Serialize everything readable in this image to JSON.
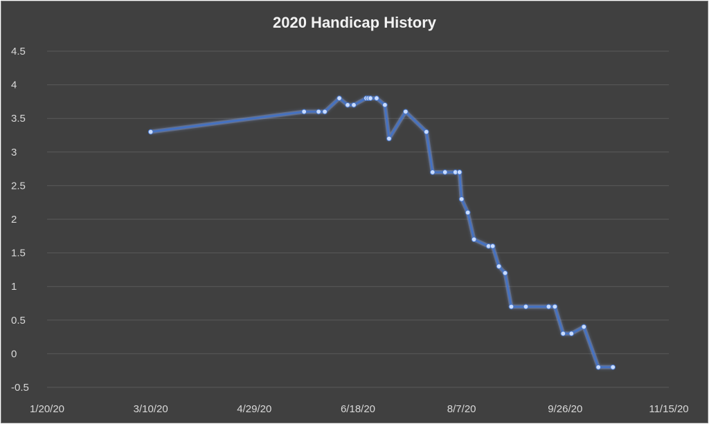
{
  "chart_data": {
    "type": "line",
    "title": "2020 Handicap History",
    "xlabel": "",
    "ylabel": "",
    "grid": true,
    "legend": "none",
    "x_axis_type": "date",
    "xlim": [
      "2020-01-20",
      "2020-11-15"
    ],
    "x_ticks": [
      "2020-01-20",
      "2020-03-10",
      "2020-04-29",
      "2020-06-18",
      "2020-08-07",
      "2020-09-26",
      "2020-11-15"
    ],
    "x_tick_labels": [
      "1/20/20",
      "3/10/20",
      "4/29/20",
      "6/18/20",
      "8/7/20",
      "9/26/20",
      "11/15/20"
    ],
    "ylim": [
      -0.5,
      4.5
    ],
    "y_ticks": [
      -0.5,
      0,
      0.5,
      1,
      1.5,
      2,
      2.5,
      3,
      3.5,
      4,
      4.5
    ],
    "y_tick_labels": [
      "-0.5",
      "0",
      "0.5",
      "1",
      "1.5",
      "2",
      "2.5",
      "3",
      "3.5",
      "4",
      "4.5"
    ],
    "colors": {
      "line": "#4472c4",
      "glow": "#8fb4ff",
      "marker": "#c9dcff",
      "grid": "#5a5a5a",
      "background": "#404040"
    },
    "series": [
      {
        "x": [
          "2020-03-10",
          "2020-05-23",
          "2020-05-30",
          "2020-06-02",
          "2020-06-09",
          "2020-06-13",
          "2020-06-16",
          "2020-06-22",
          "2020-06-23",
          "2020-06-24",
          "2020-06-27",
          "2020-07-01",
          "2020-07-03",
          "2020-07-11",
          "2020-07-21",
          "2020-07-24",
          "2020-07-30",
          "2020-08-04",
          "2020-08-06",
          "2020-08-07",
          "2020-08-10",
          "2020-08-13",
          "2020-08-20",
          "2020-08-22",
          "2020-08-25",
          "2020-08-28",
          "2020-08-31",
          "2020-09-07",
          "2020-09-18",
          "2020-09-21",
          "2020-09-25",
          "2020-09-29",
          "2020-10-05",
          "2020-10-12",
          "2020-10-19"
        ],
        "y": [
          3.3,
          3.6,
          3.6,
          3.6,
          3.8,
          3.7,
          3.7,
          3.8,
          3.8,
          3.8,
          3.8,
          3.7,
          3.2,
          3.6,
          3.3,
          2.7,
          2.7,
          2.7,
          2.7,
          2.3,
          2.1,
          1.7,
          1.6,
          1.6,
          1.3,
          1.2,
          0.7,
          0.7,
          0.7,
          0.7,
          0.3,
          0.3,
          0.4,
          -0.2,
          -0.2
        ]
      }
    ]
  }
}
